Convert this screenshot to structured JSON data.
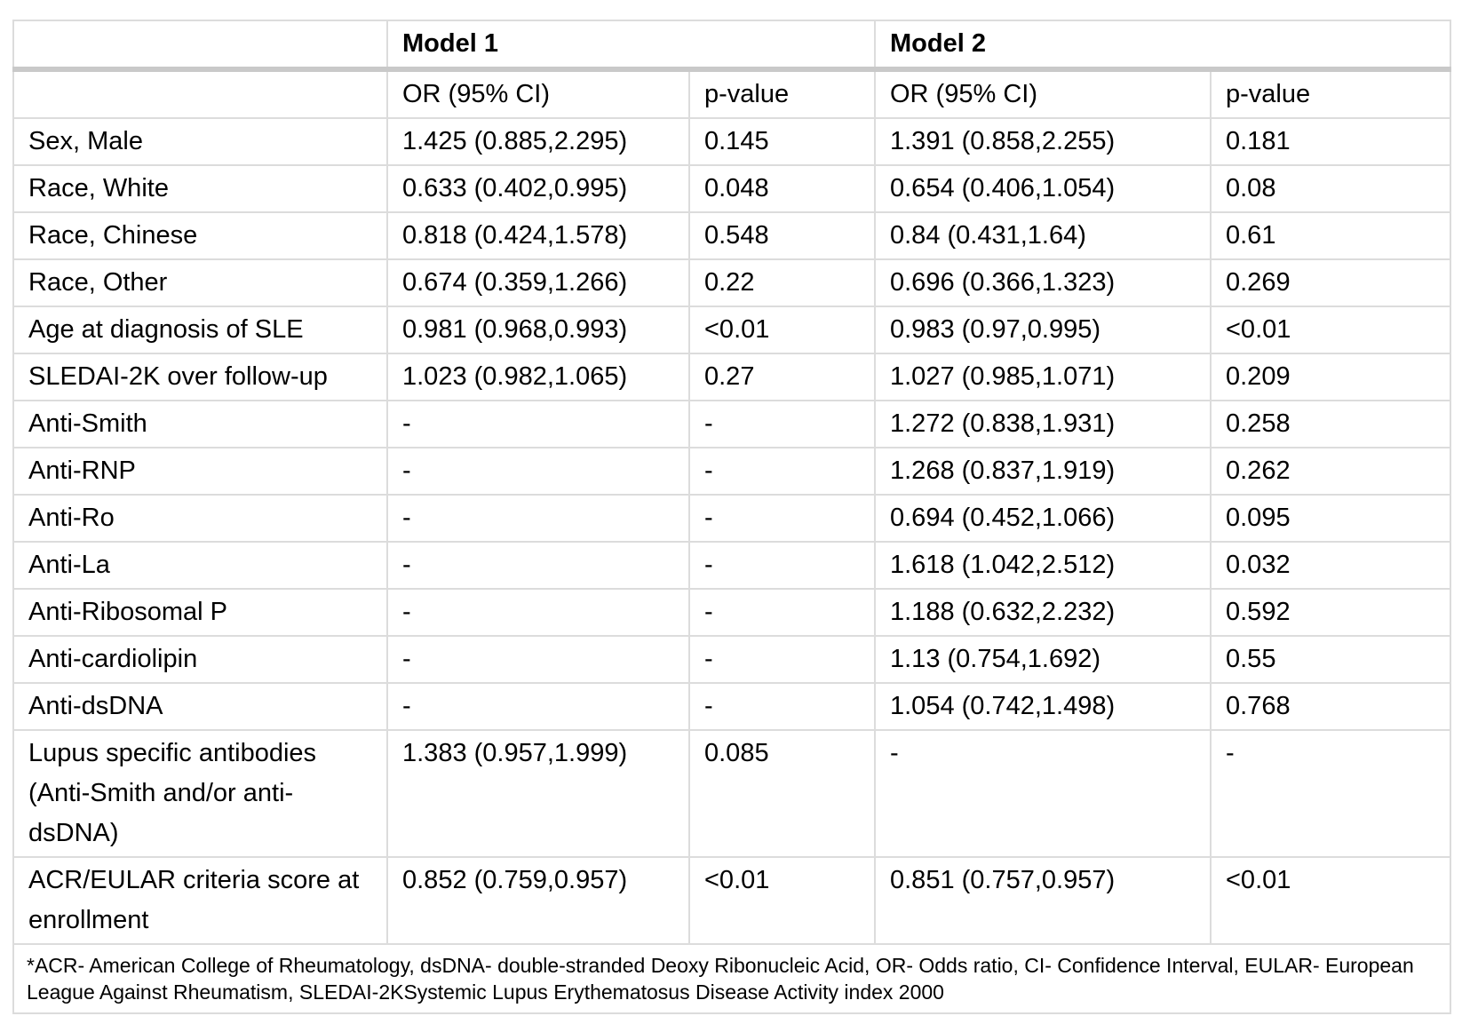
{
  "table": {
    "model1_header": "Model 1",
    "model2_header": "Model 2",
    "subheaders": [
      "",
      "OR (95% CI)",
      "p-value",
      "OR (95% CI)",
      "p-value"
    ],
    "rows": [
      {
        "label": "Sex, Male",
        "m1_or": "1.425 (0.885,2.295)",
        "m1_p": "0.145",
        "m1_p_bold": false,
        "m2_or": "1.391 (0.858,2.255)",
        "m2_p": "0.181",
        "m2_p_bold": false
      },
      {
        "label": "Race, White",
        "m1_or": "0.633 (0.402,0.995)",
        "m1_p": "0.048",
        "m1_p_bold": true,
        "m2_or": "0.654 (0.406,1.054)",
        "m2_p": "0.08",
        "m2_p_bold": false
      },
      {
        "label": "Race, Chinese",
        "m1_or": "0.818 (0.424,1.578)",
        "m1_p": "0.548",
        "m1_p_bold": false,
        "m2_or": "0.84 (0.431,1.64)",
        "m2_p": "0.61",
        "m2_p_bold": false
      },
      {
        "label": "Race, Other",
        "m1_or": "0.674 (0.359,1.266)",
        "m1_p": "0.22",
        "m1_p_bold": false,
        "m2_or": "0.696 (0.366,1.323)",
        "m2_p": "0.269",
        "m2_p_bold": false
      },
      {
        "label": "Age at diagnosis of SLE",
        "m1_or": "0.981 (0.968,0.993)",
        "m1_p": "<0.01",
        "m1_p_bold": true,
        "m2_or": "0.983 (0.97,0.995)",
        "m2_p": "<0.01",
        "m2_p_bold": true
      },
      {
        "label": "SLEDAI-2K over follow-up",
        "m1_or": "1.023 (0.982,1.065)",
        "m1_p": "0.27",
        "m1_p_bold": false,
        "m2_or": "1.027 (0.985,1.071)",
        "m2_p": "0.209",
        "m2_p_bold": false
      },
      {
        "label": "Anti-Smith",
        "m1_or": "-",
        "m1_p": "-",
        "m1_p_bold": false,
        "m2_or": "1.272 (0.838,1.931)",
        "m2_p": "0.258",
        "m2_p_bold": false
      },
      {
        "label": "Anti-RNP",
        "m1_or": "-",
        "m1_p": "-",
        "m1_p_bold": false,
        "m2_or": "1.268 (0.837,1.919)",
        "m2_p": "0.262",
        "m2_p_bold": false
      },
      {
        "label": "Anti-Ro",
        "m1_or": "-",
        "m1_p": "-",
        "m1_p_bold": false,
        "m2_or": "0.694 (0.452,1.066)",
        "m2_p": "0.095",
        "m2_p_bold": false
      },
      {
        "label": "Anti-La",
        "m1_or": "-",
        "m1_p": "-",
        "m1_p_bold": false,
        "m2_or": "1.618 (1.042,2.512)",
        "m2_p": "0.032",
        "m2_p_bold": true
      },
      {
        "label": "Anti-Ribosomal P",
        "m1_or": "-",
        "m1_p": "-",
        "m1_p_bold": false,
        "m2_or": "1.188 (0.632,2.232)",
        "m2_p": "0.592",
        "m2_p_bold": false
      },
      {
        "label": "Anti-cardiolipin",
        "m1_or": "-",
        "m1_p": "-",
        "m1_p_bold": false,
        "m2_or": "1.13 (0.754,1.692)",
        "m2_p": "0.55",
        "m2_p_bold": false
      },
      {
        "label": "Anti-dsDNA",
        "m1_or": "-",
        "m1_p": "-",
        "m1_p_bold": false,
        "m2_or": "1.054 (0.742,1.498)",
        "m2_p": "0.768",
        "m2_p_bold": false
      },
      {
        "label": "Lupus specific antibodies (Anti-Smith and/or anti-dsDNA)",
        "m1_or": "1.383 (0.957,1.999)",
        "m1_p": "0.085",
        "m1_p_bold": false,
        "m2_or": "-",
        "m2_p": "-",
        "m2_p_bold": false
      },
      {
        "label": "ACR/EULAR criteria score at enrollment",
        "m1_or": "0.852 (0.759,0.957)",
        "m1_p": "<0.01",
        "m1_p_bold": true,
        "m2_or": "0.851 (0.757,0.957)",
        "m2_p": "<0.01",
        "m2_p_bold": true
      }
    ],
    "footnote": "*ACR- American College of Rheumatology, dsDNA- double-stranded Deoxy Ribonucleic Acid, OR- Odds ratio, CI- Confidence Interval, EULAR- European League Against Rheumatism, SLEDAI-2KSystemic Lupus Erythematosus Disease Activity index 2000"
  },
  "colors": {
    "background": "#ffffff",
    "text": "#000000",
    "border_thin": "#dcdcdc",
    "border_thick": "#c9c9c9"
  }
}
